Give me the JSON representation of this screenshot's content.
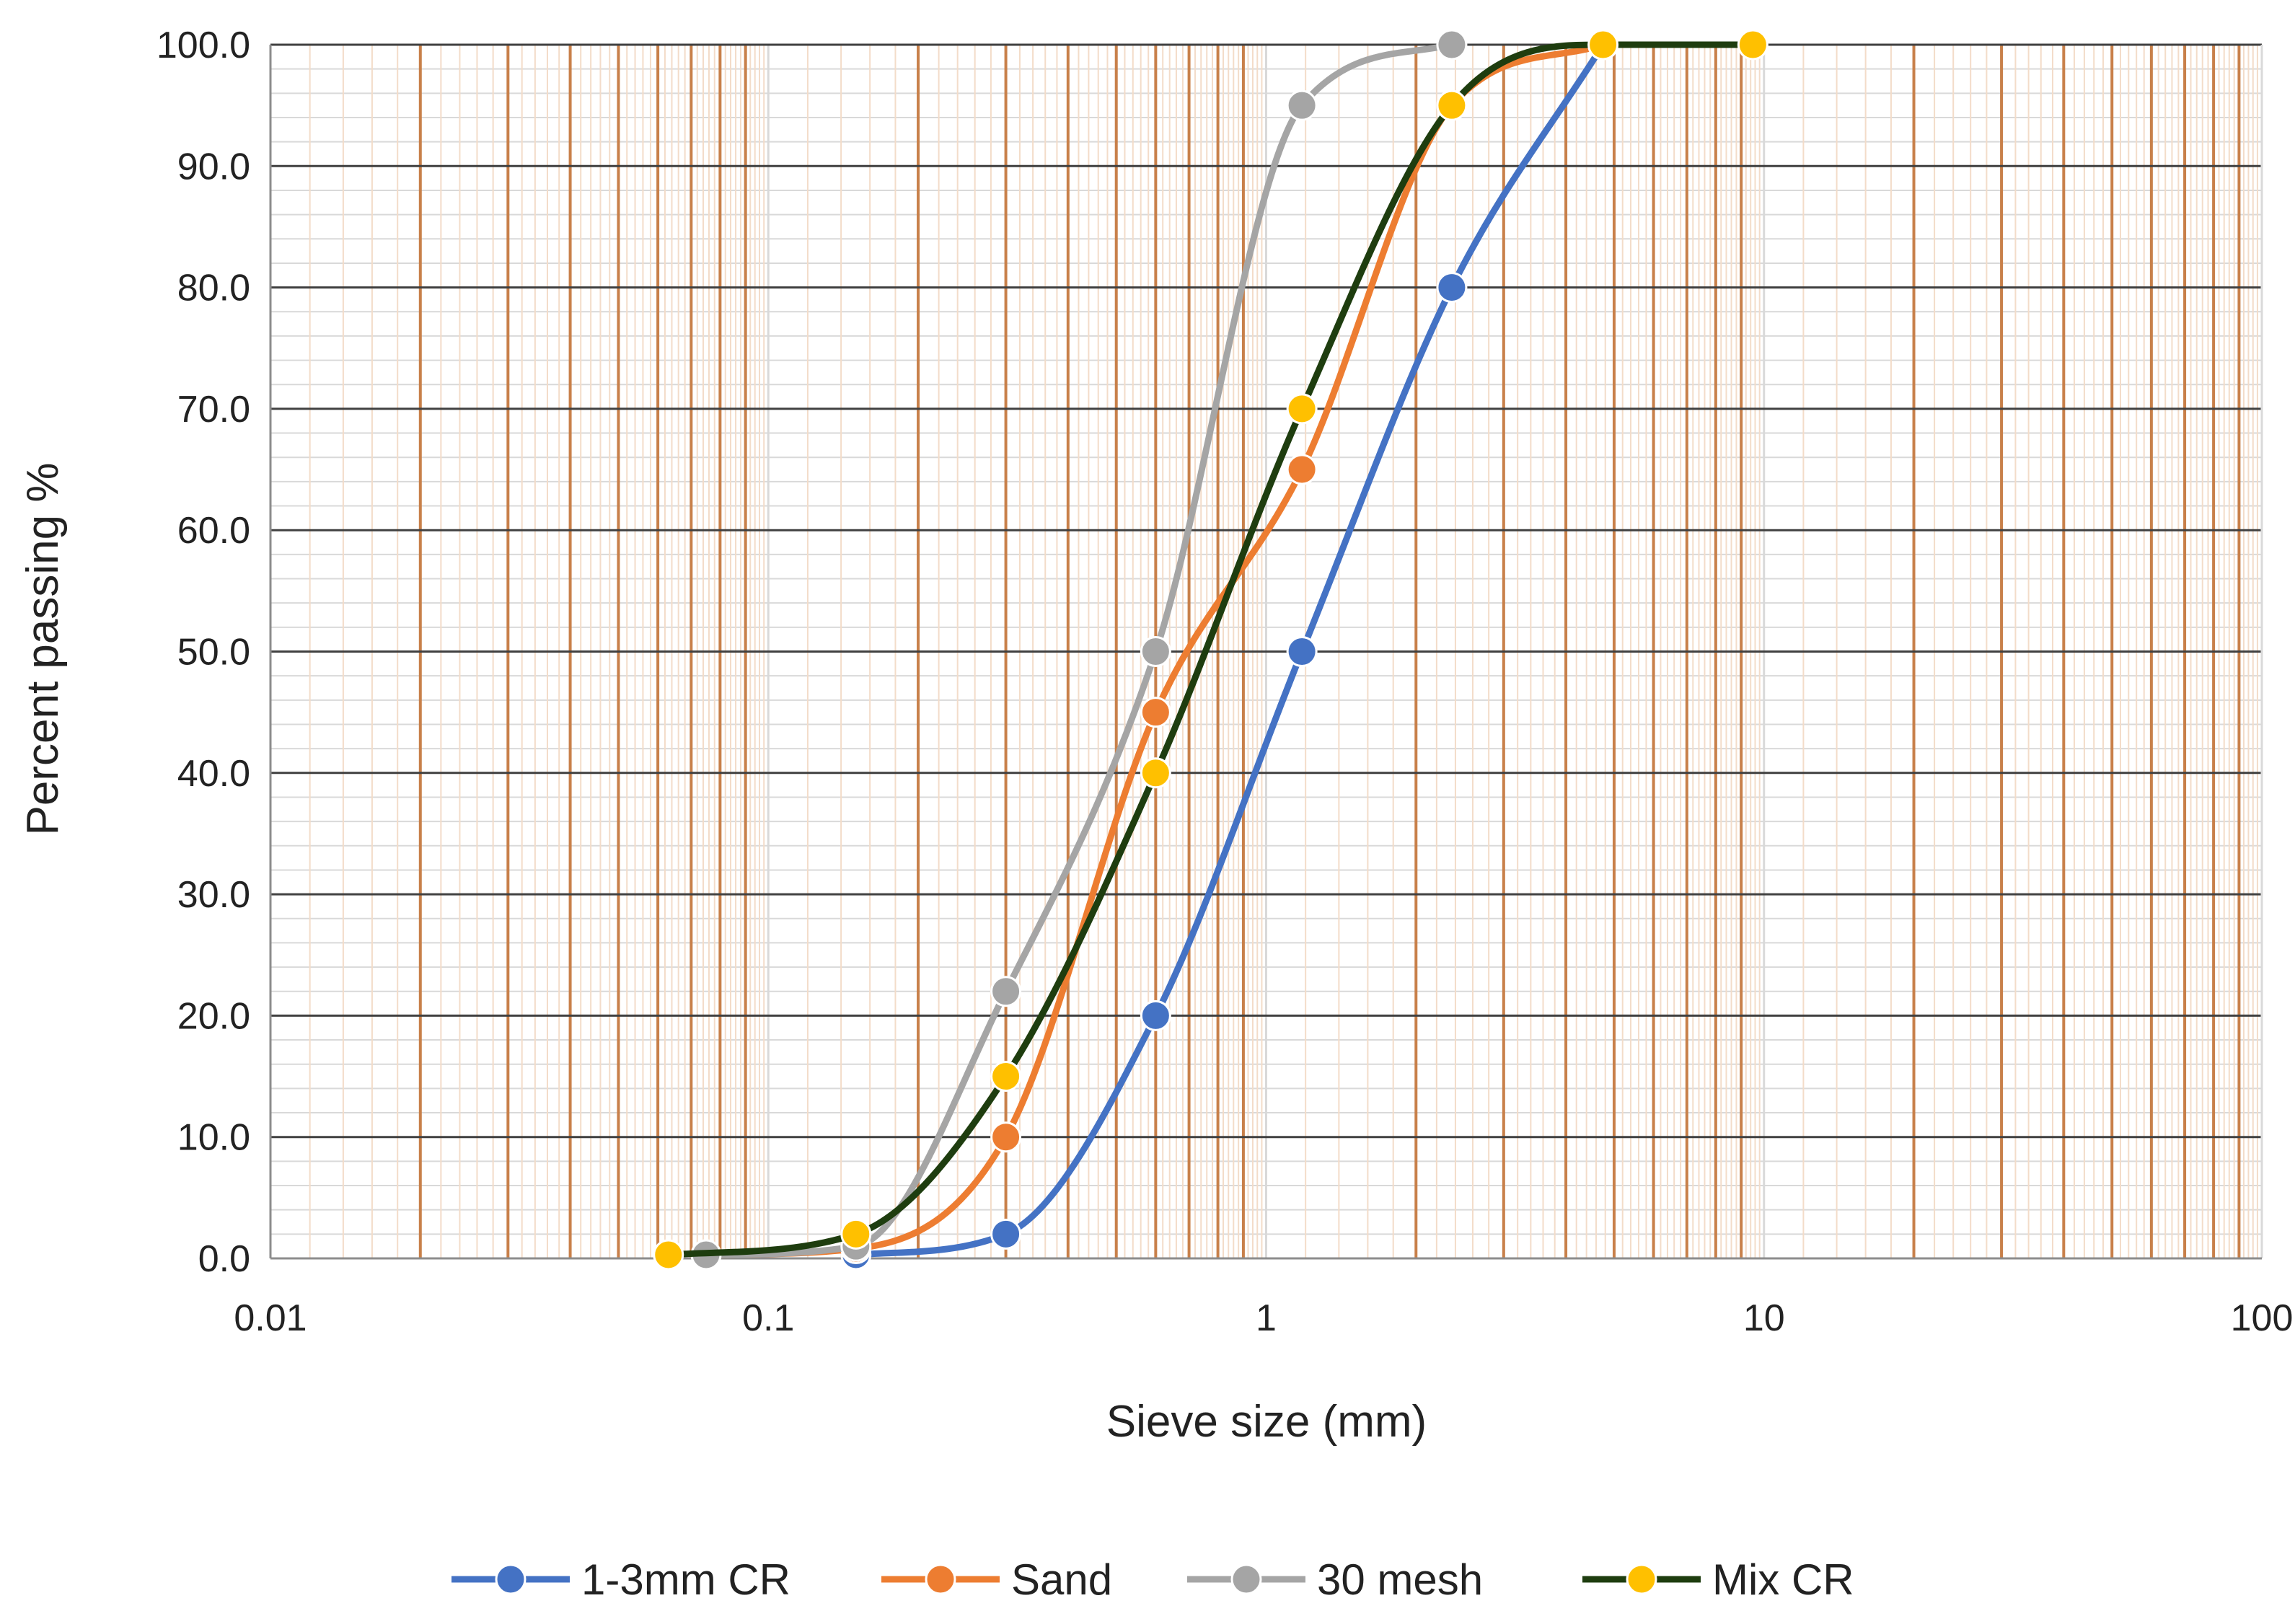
{
  "chart_data": {
    "type": "line",
    "title": "",
    "xlabel": "Sieve size (mm)",
    "ylabel": "Percent passing %",
    "x_scale": "log",
    "xlim": [
      0.01,
      100
    ],
    "ylim": [
      0,
      100
    ],
    "x_ticks": [
      0.01,
      0.1,
      1,
      10,
      100
    ],
    "x_tick_labels": [
      "0.01",
      "0.1",
      "1",
      "10",
      "100"
    ],
    "y_ticks": [
      0,
      10,
      20,
      30,
      40,
      50,
      60,
      70,
      80,
      90,
      100
    ],
    "y_tick_labels": [
      "0.0",
      "10.0",
      "20.0",
      "30.0",
      "40.0",
      "50.0",
      "60.0",
      "70.0",
      "80.0",
      "90.0",
      "100.0"
    ],
    "grid": true,
    "legend_position": "bottom",
    "series": [
      {
        "name": "1-3mm CR",
        "color": "#4472c4",
        "x": [
          0.15,
          0.3,
          0.6,
          1.18,
          2.36,
          4.75
        ],
        "y": [
          0.3,
          2,
          20,
          50,
          80,
          100
        ]
      },
      {
        "name": "Sand",
        "color": "#ed7d31",
        "x": [
          0.075,
          0.15,
          0.3,
          0.6,
          1.18,
          2.36,
          4.75
        ],
        "y": [
          0.3,
          0.8,
          10,
          45,
          65,
          95,
          100
        ]
      },
      {
        "name": "30 mesh",
        "color": "#a5a5a5",
        "x": [
          0.075,
          0.15,
          0.3,
          0.6,
          1.18,
          2.36
        ],
        "y": [
          0.3,
          1,
          22,
          50,
          95,
          100
        ]
      },
      {
        "name": "Mix CR",
        "color": "#1e3d0f",
        "marker_color": "#ffc000",
        "x": [
          0.063,
          0.15,
          0.3,
          0.6,
          1.18,
          2.36,
          4.75,
          9.5
        ],
        "y": [
          0.3,
          2,
          15,
          40,
          70,
          95,
          100,
          100
        ]
      }
    ]
  }
}
